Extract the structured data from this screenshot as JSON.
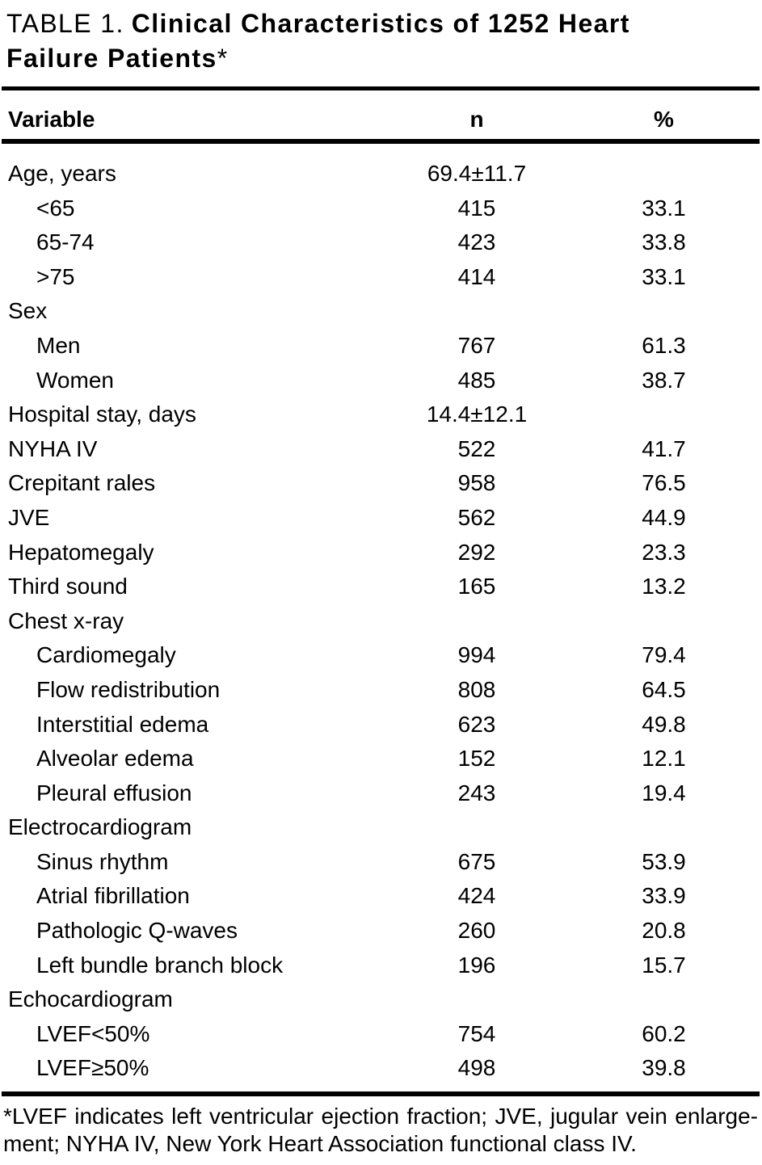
{
  "title": {
    "prefix": "TABLE 1.",
    "main": "Clinical Characteristics of 1252 Heart Failure Patients",
    "marker": "*"
  },
  "header": {
    "variable": "Variable",
    "n": "n",
    "pct": "%"
  },
  "table": {
    "rows": [
      {
        "label": "Age, years",
        "n": "69.4±11.7",
        "pct": "",
        "indent": false
      },
      {
        "label": "<65",
        "n": "415",
        "pct": "33.1",
        "indent": true
      },
      {
        "label": "65-74",
        "n": "423",
        "pct": "33.8",
        "indent": true
      },
      {
        "label": ">75",
        "n": "414",
        "pct": "33.1",
        "indent": true
      },
      {
        "label": "Sex",
        "n": "",
        "pct": "",
        "indent": false
      },
      {
        "label": "Men",
        "n": "767",
        "pct": "61.3",
        "indent": true
      },
      {
        "label": "Women",
        "n": "485",
        "pct": "38.7",
        "indent": true
      },
      {
        "label": "Hospital stay, days",
        "n": "14.4±12.1",
        "pct": "",
        "indent": false
      },
      {
        "label": "NYHA IV",
        "n": "522",
        "pct": "41.7",
        "indent": false
      },
      {
        "label": "Crepitant rales",
        "n": "958",
        "pct": "76.5",
        "indent": false
      },
      {
        "label": "JVE",
        "n": "562",
        "pct": "44.9",
        "indent": false
      },
      {
        "label": "Hepatomegaly",
        "n": "292",
        "pct": "23.3",
        "indent": false
      },
      {
        "label": "Third sound",
        "n": "165",
        "pct": "13.2",
        "indent": false
      },
      {
        "label": "Chest x-ray",
        "n": "",
        "pct": "",
        "indent": false
      },
      {
        "label": "Cardiomegaly",
        "n": "994",
        "pct": "79.4",
        "indent": true
      },
      {
        "label": "Flow redistribution",
        "n": "808",
        "pct": "64.5",
        "indent": true
      },
      {
        "label": "Interstitial edema",
        "n": "623",
        "pct": "49.8",
        "indent": true
      },
      {
        "label": "Alveolar edema",
        "n": "152",
        "pct": "12.1",
        "indent": true
      },
      {
        "label": "Pleural effusion",
        "n": "243",
        "pct": "19.4",
        "indent": true
      },
      {
        "label": "Electrocardiogram",
        "n": "",
        "pct": "",
        "indent": false
      },
      {
        "label": "Sinus rhythm",
        "n": "675",
        "pct": "53.9",
        "indent": true
      },
      {
        "label": "Atrial fibrillation",
        "n": "424",
        "pct": "33.9",
        "indent": true
      },
      {
        "label": "Pathologic Q-waves",
        "n": "260",
        "pct": "20.8",
        "indent": true
      },
      {
        "label": "Left bundle branch block",
        "n": "196",
        "pct": "15.7",
        "indent": true
      },
      {
        "label": "Echocardiogram",
        "n": "",
        "pct": "",
        "indent": false
      },
      {
        "label": "LVEF<50%",
        "n": "754",
        "pct": "60.2",
        "indent": true
      },
      {
        "label": "LVEF≥50%",
        "n": "498",
        "pct": "39.8",
        "indent": true
      }
    ]
  },
  "footnote": {
    "line1": "*LVEF indicates left ventricular ejection fraction; JVE, jugular vein enlarge-",
    "line2": "ment; NYHA IV, New York Heart Association functional class IV."
  },
  "colors": {
    "text": "#000000",
    "background": "#ffffff",
    "rule": "#000000"
  }
}
